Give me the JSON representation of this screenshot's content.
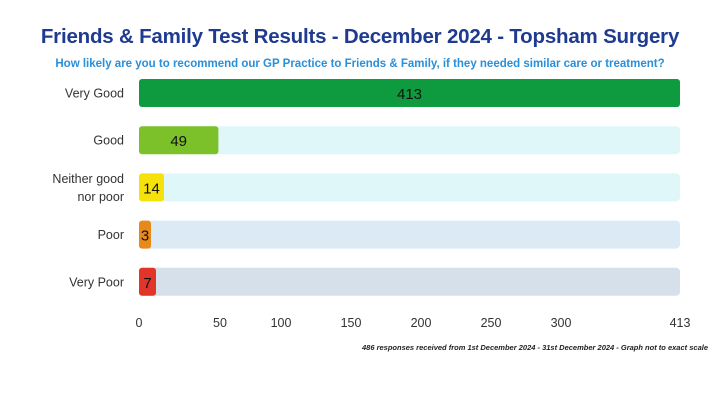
{
  "title": "Friends & Family Test Results - December 2024 - Topsham Surgery",
  "subtitle": "How likely are you to recommend our GP Practice to Friends & Family, if they needed similar care or treatment?",
  "footnote": "486 responses received from 1st December 2024 - 31st December 2024 - Graph not to exact scale",
  "colors": {
    "title": "#1f3b8f",
    "subtitle": "#2a8fd8"
  },
  "chart_data": {
    "type": "bar",
    "orientation": "horizontal",
    "categories": [
      "Very Good",
      "Good",
      "Neither good nor poor",
      "Poor",
      "Very Poor"
    ],
    "category_lines": [
      [
        "Very Good"
      ],
      [
        "Good"
      ],
      [
        "Neither good",
        "nor poor"
      ],
      [
        "Poor"
      ],
      [
        "Very Poor"
      ]
    ],
    "values": [
      413,
      49,
      14,
      3,
      7
    ],
    "bar_colors": [
      "#0e9a3e",
      "#7cc12a",
      "#f5e20a",
      "#e88a1a",
      "#e2352a"
    ],
    "track_colors": [
      "#dff7f8",
      "#dff7f8",
      "#dff7f8",
      "#dceaf6",
      "#d6e0ea"
    ],
    "x_ticks": [
      0,
      50,
      100,
      150,
      200,
      250,
      300,
      413
    ],
    "x_tick_labels": [
      "0",
      "50",
      "100",
      "150",
      "200",
      "250",
      "300",
      "413"
    ],
    "xlim": [
      0,
      413
    ],
    "scale_note": "not to exact scale",
    "title": "Friends & Family Test Results - December 2024 - Topsham Surgery",
    "xlabel": "",
    "ylabel": "",
    "grid": false,
    "legend": "none"
  }
}
